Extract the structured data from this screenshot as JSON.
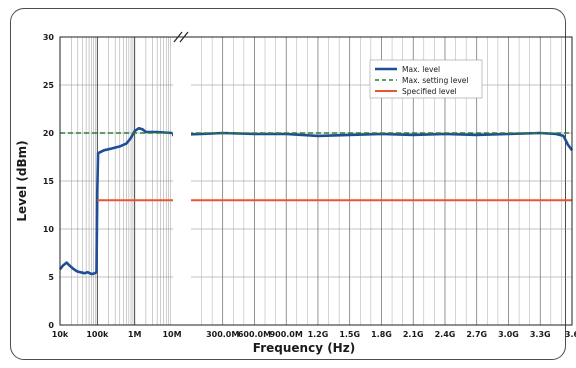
{
  "chart_data": {
    "type": "line",
    "xlabel": "Frequency (Hz)",
    "ylabel": "Level (dBm)",
    "ylim": [
      0,
      30
    ],
    "yticks": [
      0,
      5,
      10,
      15,
      20,
      25,
      30
    ],
    "grid": true,
    "legend_position": "top-right",
    "x_scale": "log up to 10 MHz, linear above (broken axis)",
    "log_ticks": [
      {
        "label": "10k",
        "value": 10000
      },
      {
        "label": "100k",
        "value": 100000
      },
      {
        "label": "1M",
        "value": 1000000
      },
      {
        "label": "10M",
        "value": 10000000
      }
    ],
    "linear_ticks": [
      {
        "label": "300.0M",
        "value": 300000000
      },
      {
        "label": "600.0M",
        "value": 600000000
      },
      {
        "label": "900.0M",
        "value": 900000000
      },
      {
        "label": "1.2G",
        "value": 1200000000
      },
      {
        "label": "1.5G",
        "value": 1500000000
      },
      {
        "label": "1.8G",
        "value": 1800000000
      },
      {
        "label": "2.1G",
        "value": 2100000000
      },
      {
        "label": "2.4G",
        "value": 2400000000
      },
      {
        "label": "2.7G",
        "value": 2700000000
      },
      {
        "label": "3.0G",
        "value": 3000000000
      },
      {
        "label": "3.3G",
        "value": 3300000000
      },
      {
        "label": "3.6",
        "value": 3600000000
      }
    ],
    "series": [
      {
        "name": "Max. level",
        "color": "#1f4e96",
        "style": "solid",
        "segments": [
          [
            [
              10000,
              5.8
            ],
            [
              12000,
              6.2
            ],
            [
              15000,
              6.5
            ],
            [
              18000,
              6.2
            ],
            [
              22000,
              5.9
            ],
            [
              28000,
              5.6
            ],
            [
              35000,
              5.5
            ],
            [
              45000,
              5.4
            ],
            [
              55000,
              5.5
            ],
            [
              70000,
              5.3
            ],
            [
              85000,
              5.4
            ],
            [
              95000,
              5.5
            ],
            [
              100000,
              14.0
            ],
            [
              105000,
              17.9
            ],
            [
              150000,
              18.2
            ],
            [
              250000,
              18.4
            ],
            [
              400000,
              18.6
            ],
            [
              600000,
              18.9
            ],
            [
              800000,
              19.5
            ],
            [
              1000000,
              20.2
            ],
            [
              1300000,
              20.5
            ],
            [
              1600000,
              20.4
            ],
            [
              2000000,
              20.1
            ],
            [
              4000000,
              20.1
            ],
            [
              10000000,
              20.0
            ]
          ],
          [
            [
              10000000,
              19.8
            ],
            [
              100000000,
              19.9
            ],
            [
              300000000,
              20.0
            ],
            [
              600000000,
              19.9
            ],
            [
              900000000,
              19.9
            ],
            [
              1200000000,
              19.7
            ],
            [
              1500000000,
              19.8
            ],
            [
              1800000000,
              19.9
            ],
            [
              2100000000,
              19.8
            ],
            [
              2400000000,
              19.9
            ],
            [
              2700000000,
              19.8
            ],
            [
              3000000000,
              19.9
            ],
            [
              3300000000,
              20.0
            ],
            [
              3450000000,
              19.9
            ],
            [
              3520000000,
              19.7
            ],
            [
              3560000000,
              18.8
            ],
            [
              3600000000,
              18.2
            ]
          ]
        ]
      },
      {
        "name": "Max. setting level",
        "color": "#2e7d32",
        "style": "dashed",
        "segments": [
          [
            [
              10000,
              20.0
            ],
            [
              10000000,
              20.0
            ]
          ],
          [
            [
              10000000,
              20.0
            ],
            [
              3600000000,
              20.0
            ]
          ]
        ]
      },
      {
        "name": "Specified level",
        "color": "#e8552e",
        "style": "solid",
        "segments": [
          [
            [
              100000,
              13.0
            ],
            [
              10000000,
              13.0
            ]
          ],
          [
            [
              10000000,
              13.0
            ],
            [
              3600000000,
              13.0
            ]
          ]
        ]
      }
    ]
  }
}
